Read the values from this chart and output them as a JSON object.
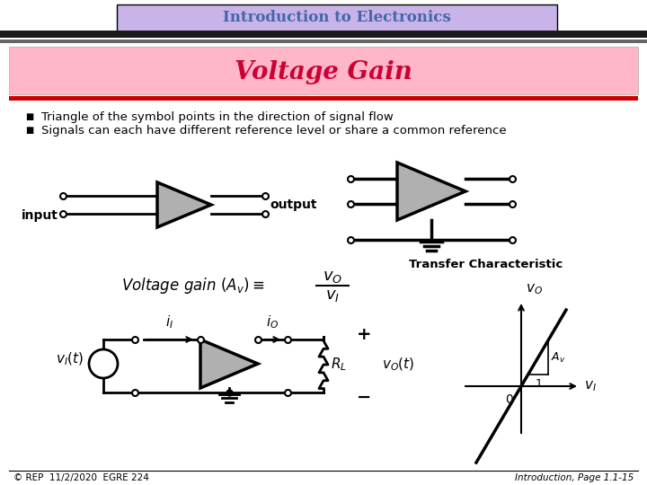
{
  "title": "Introduction to Electronics",
  "subtitle": "Voltage Gain",
  "title_bg": "#c8b4e8",
  "subtitle_bg": "#ffb6c8",
  "title_color": "#4466aa",
  "subtitle_color": "#cc0033",
  "bullet1": "Triangle of the symbol points in the direction of signal flow",
  "bullet2": "Signals can each have different reference level or share a common reference",
  "footer_left": "© REP  11/2/2020  EGRE 224",
  "footer_right": "Introduction, Page 1.1-15",
  "bg_color": "#ffffff"
}
